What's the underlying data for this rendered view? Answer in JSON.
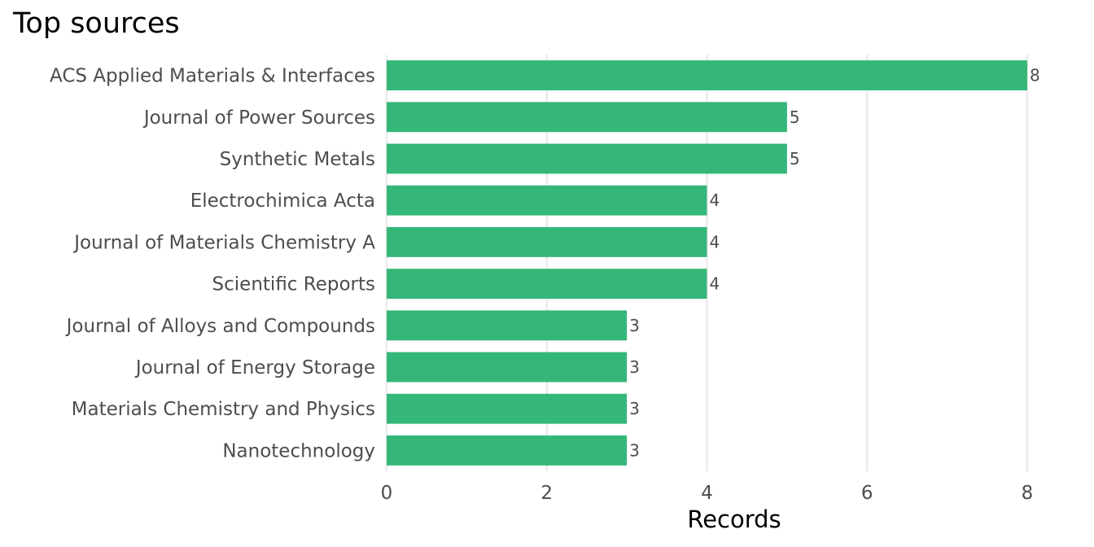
{
  "chart_data": {
    "type": "bar",
    "orientation": "horizontal",
    "title": "Top sources",
    "xlabel": "Records",
    "ylabel": "",
    "categories": [
      "ACS Applied Materials & Interfaces",
      "Journal of Power Sources",
      "Synthetic Metals",
      "Electrochimica Acta",
      "Journal of Materials Chemistry A",
      "Scientific Reports",
      "Journal of Alloys and Compounds",
      "Journal of Energy Storage",
      "Materials Chemistry and Physics",
      "Nanotechnology"
    ],
    "values": [
      8,
      5,
      5,
      4,
      4,
      4,
      3,
      3,
      3,
      3
    ],
    "xlim": [
      0,
      8
    ],
    "xticks": [
      0,
      2,
      4,
      6,
      8
    ],
    "grid": "vertical",
    "bar_color": "#35b779",
    "data_labels": true
  }
}
